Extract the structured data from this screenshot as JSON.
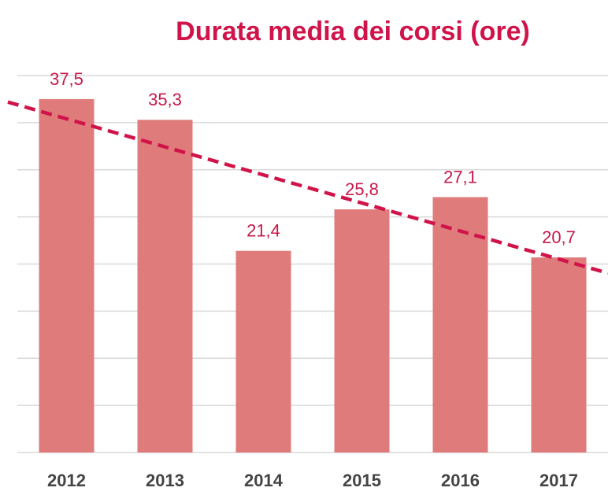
{
  "chart_data": {
    "type": "bar",
    "title": "Durata media dei corsi (ore)",
    "categories": [
      "2012",
      "2013",
      "2014",
      "2015",
      "2016",
      "2017"
    ],
    "values": [
      37.5,
      35.3,
      21.4,
      25.8,
      27.1,
      20.7
    ],
    "value_labels": [
      "37,5",
      "35,3",
      "21,4",
      "25,8",
      "27,1",
      "20,7"
    ],
    "color": "#e07b7b",
    "label_color": "#c8184a",
    "trendline": true,
    "trendline_color": "#d0144a",
    "ylim": [
      0,
      40
    ],
    "yticks": [
      0,
      5,
      10,
      15,
      20,
      25,
      30,
      35,
      40
    ],
    "grid": true
  }
}
